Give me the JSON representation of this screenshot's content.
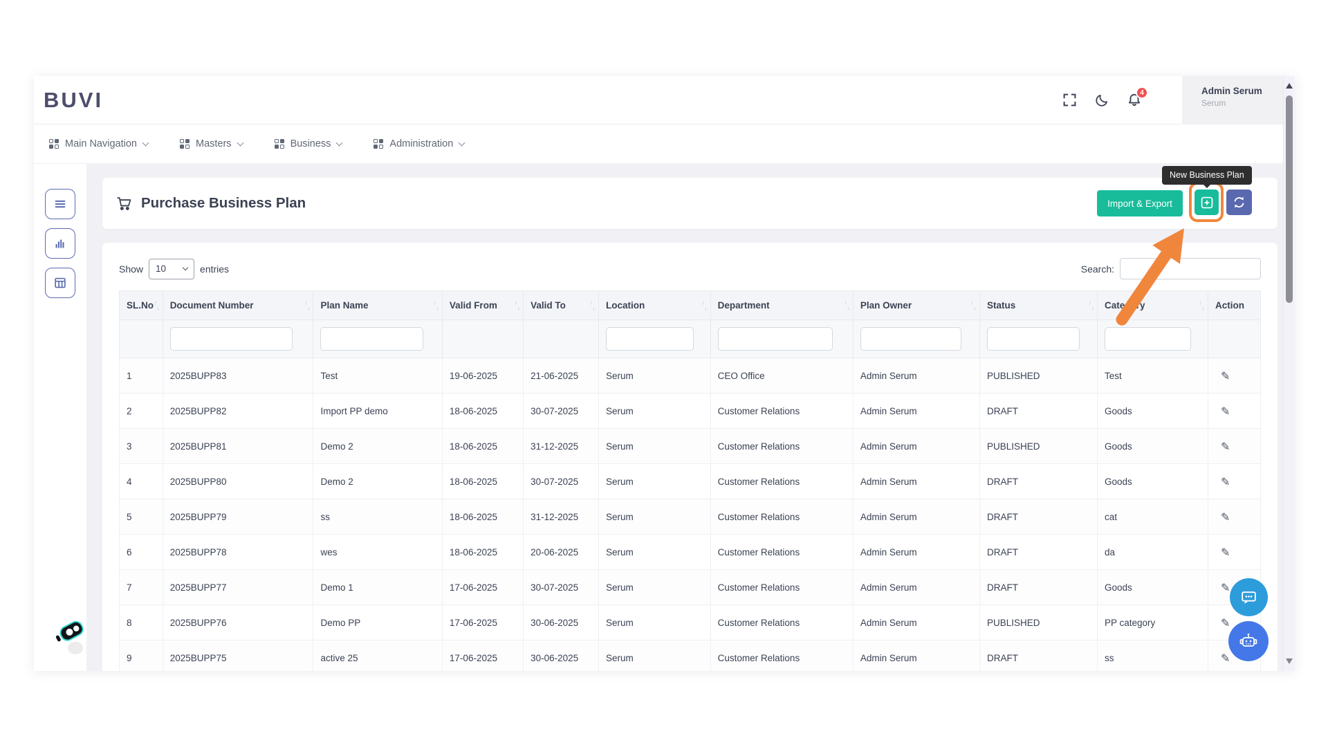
{
  "app": {
    "logo": "BUVI"
  },
  "header": {
    "user_name": "Admin Serum",
    "user_role": "Serum",
    "notification_count": "4"
  },
  "nav": {
    "items": [
      {
        "label": "Main Navigation"
      },
      {
        "label": "Masters"
      },
      {
        "label": "Business"
      },
      {
        "label": "Administration"
      }
    ]
  },
  "page": {
    "title": "Purchase Business Plan",
    "import_export_label": "Import & Export",
    "tooltip": "New Business Plan"
  },
  "controls": {
    "show_label": "Show",
    "entries_label": "entries",
    "page_size": "10",
    "search_label": "Search:",
    "search_value": ""
  },
  "table": {
    "columns": [
      {
        "label": "SL.No",
        "sortable": true,
        "filter": false
      },
      {
        "label": "Document Number",
        "sortable": true,
        "filter": true
      },
      {
        "label": "Plan Name",
        "sortable": true,
        "filter": true
      },
      {
        "label": "Valid From",
        "sortable": true,
        "filter": false
      },
      {
        "label": "Valid To",
        "sortable": true,
        "filter": false
      },
      {
        "label": "Location",
        "sortable": true,
        "filter": true
      },
      {
        "label": "Department",
        "sortable": true,
        "filter": true
      },
      {
        "label": "Plan Owner",
        "sortable": true,
        "filter": true
      },
      {
        "label": "Status",
        "sortable": true,
        "filter": true
      },
      {
        "label": "Category",
        "sortable": true,
        "filter": true
      },
      {
        "label": "Action",
        "sortable": false,
        "filter": false
      }
    ],
    "rows": [
      [
        "1",
        "2025BUPP83",
        "Test",
        "19-06-2025",
        "21-06-2025",
        "Serum",
        "CEO Office",
        "Admin Serum",
        "PUBLISHED",
        "Test"
      ],
      [
        "2",
        "2025BUPP82",
        "Import PP demo",
        "18-06-2025",
        "30-07-2025",
        "Serum",
        "Customer Relations",
        "Admin Serum",
        "DRAFT",
        "Goods"
      ],
      [
        "3",
        "2025BUPP81",
        "Demo 2",
        "18-06-2025",
        "31-12-2025",
        "Serum",
        "Customer Relations",
        "Admin Serum",
        "PUBLISHED",
        "Goods"
      ],
      [
        "4",
        "2025BUPP80",
        "Demo 2",
        "18-06-2025",
        "30-07-2025",
        "Serum",
        "Customer Relations",
        "Admin Serum",
        "DRAFT",
        "Goods"
      ],
      [
        "5",
        "2025BUPP79",
        "ss",
        "18-06-2025",
        "31-12-2025",
        "Serum",
        "Customer Relations",
        "Admin Serum",
        "DRAFT",
        "cat"
      ],
      [
        "6",
        "2025BUPP78",
        "wes",
        "18-06-2025",
        "20-06-2025",
        "Serum",
        "Customer Relations",
        "Admin Serum",
        "DRAFT",
        "da"
      ],
      [
        "7",
        "2025BUPP77",
        "Demo 1",
        "17-06-2025",
        "30-07-2025",
        "Serum",
        "Customer Relations",
        "Admin Serum",
        "DRAFT",
        "Goods"
      ],
      [
        "8",
        "2025BUPP76",
        "Demo PP",
        "17-06-2025",
        "30-06-2025",
        "Serum",
        "Customer Relations",
        "Admin Serum",
        "PUBLISHED",
        "PP category"
      ],
      [
        "9",
        "2025BUPP75",
        "active 25",
        "17-06-2025",
        "30-06-2025",
        "Serum",
        "Customer Relations",
        "Admin Serum",
        "DRAFT",
        "ss"
      ]
    ]
  },
  "icons": {
    "pencil": "✎",
    "sort_up": "↑",
    "sort_down": "↓"
  },
  "colors": {
    "accent_green": "#18bc9b",
    "accent_indigo": "#5a68b0",
    "highlight_orange": "#f0863c",
    "badge_red": "#ee5253",
    "chat_blue": "#2d9cdb",
    "bot_blue": "#4478e8"
  }
}
